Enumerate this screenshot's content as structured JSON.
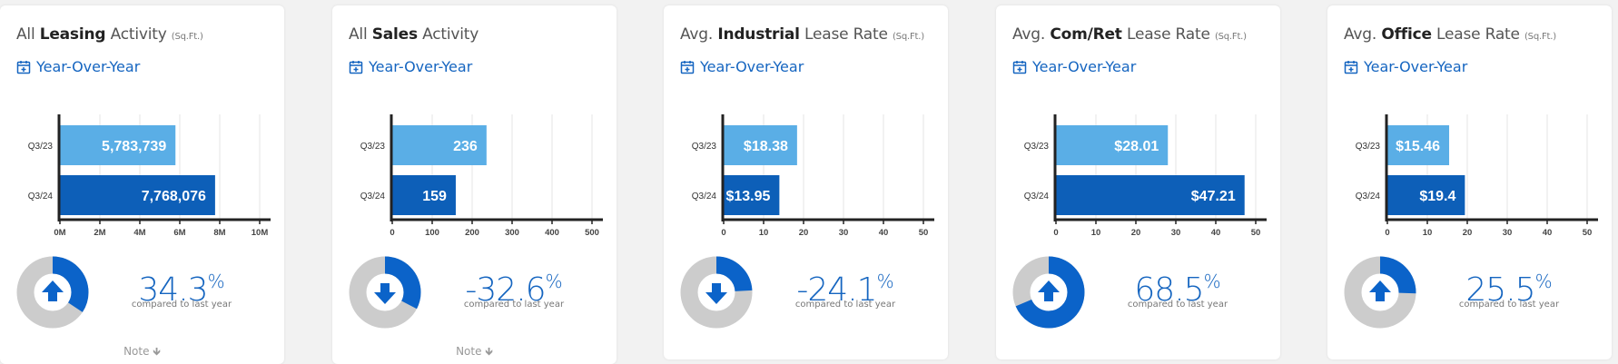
{
  "cards": [
    {
      "title_pre": "All",
      "title_bold": "Leasing",
      "title_post": "Activity",
      "title_unit": "(Sq.Ft.)",
      "period_label": "Year-Over-Year",
      "icon": "calendar-plus-icon",
      "percent": "34.3",
      "percent_symbol": "%",
      "compare_text": "compared to last year",
      "direction": "up",
      "donut_fraction": 0.343,
      "note_label": "Note"
    },
    {
      "title_pre": "All",
      "title_bold": "Sales",
      "title_post": "Activity",
      "title_unit": "",
      "period_label": "Year-Over-Year",
      "icon": "calendar-plus-icon",
      "percent": "-32.6",
      "percent_symbol": "%",
      "compare_text": "compared to last year",
      "direction": "down",
      "donut_fraction": 0.326,
      "note_label": "Note"
    },
    {
      "title_pre": "Avg.",
      "title_bold": "Industrial",
      "title_post": "Lease Rate",
      "title_unit": "(Sq.Ft.)",
      "period_label": "Year-Over-Year",
      "icon": "calendar-plus-icon",
      "percent": "-24.1",
      "percent_symbol": "%",
      "compare_text": "compared to last year",
      "direction": "down",
      "donut_fraction": 0.241,
      "note_label": ""
    },
    {
      "title_pre": "Avg.",
      "title_bold": "Com/Ret",
      "title_post": "Lease Rate",
      "title_unit": "(Sq.Ft.)",
      "period_label": "Year-Over-Year",
      "icon": "calendar-plus-icon",
      "percent": "68.5",
      "percent_symbol": "%",
      "compare_text": "compared to last year",
      "direction": "up",
      "donut_fraction": 0.685,
      "note_label": ""
    },
    {
      "title_pre": "Avg.",
      "title_bold": "Office",
      "title_post": "Lease Rate",
      "title_unit": "(Sq.Ft.)",
      "period_label": "Year-Over-Year",
      "icon": "calendar-plus-icon",
      "percent": "25.5",
      "percent_symbol": "%",
      "compare_text": "compared to last year",
      "direction": "up",
      "donut_fraction": 0.255,
      "note_label": ""
    }
  ],
  "colors": {
    "accent": "#1565c0",
    "bar_q3_23": "#5aaee6",
    "bar_q3_24": "#0d5fb8",
    "donut_track": "#cccccc",
    "donut_fill": "#0b63c9"
  },
  "chart_data": [
    {
      "type": "bar",
      "orientation": "horizontal",
      "categories": [
        "Q3/23",
        "Q3/24"
      ],
      "values": [
        5783739,
        7768076
      ],
      "value_labels": [
        "5,783,739",
        "7,768,076"
      ],
      "xlim": [
        0,
        10000000
      ],
      "xticks": [
        0,
        2000000,
        4000000,
        6000000,
        8000000,
        10000000
      ],
      "xtick_labels": [
        "0M",
        "2M",
        "4M",
        "6M",
        "8M",
        "10M"
      ],
      "grid": true
    },
    {
      "type": "bar",
      "orientation": "horizontal",
      "categories": [
        "Q3/23",
        "Q3/24"
      ],
      "values": [
        236,
        159
      ],
      "value_labels": [
        "236",
        "159"
      ],
      "xlim": [
        0,
        500
      ],
      "xticks": [
        0,
        100,
        200,
        300,
        400,
        500
      ],
      "xtick_labels": [
        "0",
        "100",
        "200",
        "300",
        "400",
        "500"
      ],
      "grid": true
    },
    {
      "type": "bar",
      "orientation": "horizontal",
      "categories": [
        "Q3/23",
        "Q3/24"
      ],
      "values": [
        18.38,
        13.95
      ],
      "value_labels": [
        "$18.38",
        "$13.95"
      ],
      "xlim": [
        0,
        50
      ],
      "xticks": [
        0,
        10,
        20,
        30,
        40,
        50
      ],
      "xtick_labels": [
        "0",
        "10",
        "20",
        "30",
        "40",
        "50"
      ],
      "grid": true
    },
    {
      "type": "bar",
      "orientation": "horizontal",
      "categories": [
        "Q3/23",
        "Q3/24"
      ],
      "values": [
        28.01,
        47.21
      ],
      "value_labels": [
        "$28.01",
        "$47.21"
      ],
      "xlim": [
        0,
        50
      ],
      "xticks": [
        0,
        10,
        20,
        30,
        40,
        50
      ],
      "xtick_labels": [
        "0",
        "10",
        "20",
        "30",
        "40",
        "50"
      ],
      "grid": true
    },
    {
      "type": "bar",
      "orientation": "horizontal",
      "categories": [
        "Q3/23",
        "Q3/24"
      ],
      "values": [
        15.46,
        19.4
      ],
      "value_labels": [
        "$15.46",
        "$19.4"
      ],
      "xlim": [
        0,
        50
      ],
      "xticks": [
        0,
        10,
        20,
        30,
        40,
        50
      ],
      "xtick_labels": [
        "0",
        "10",
        "20",
        "30",
        "40",
        "50"
      ],
      "grid": true
    }
  ]
}
